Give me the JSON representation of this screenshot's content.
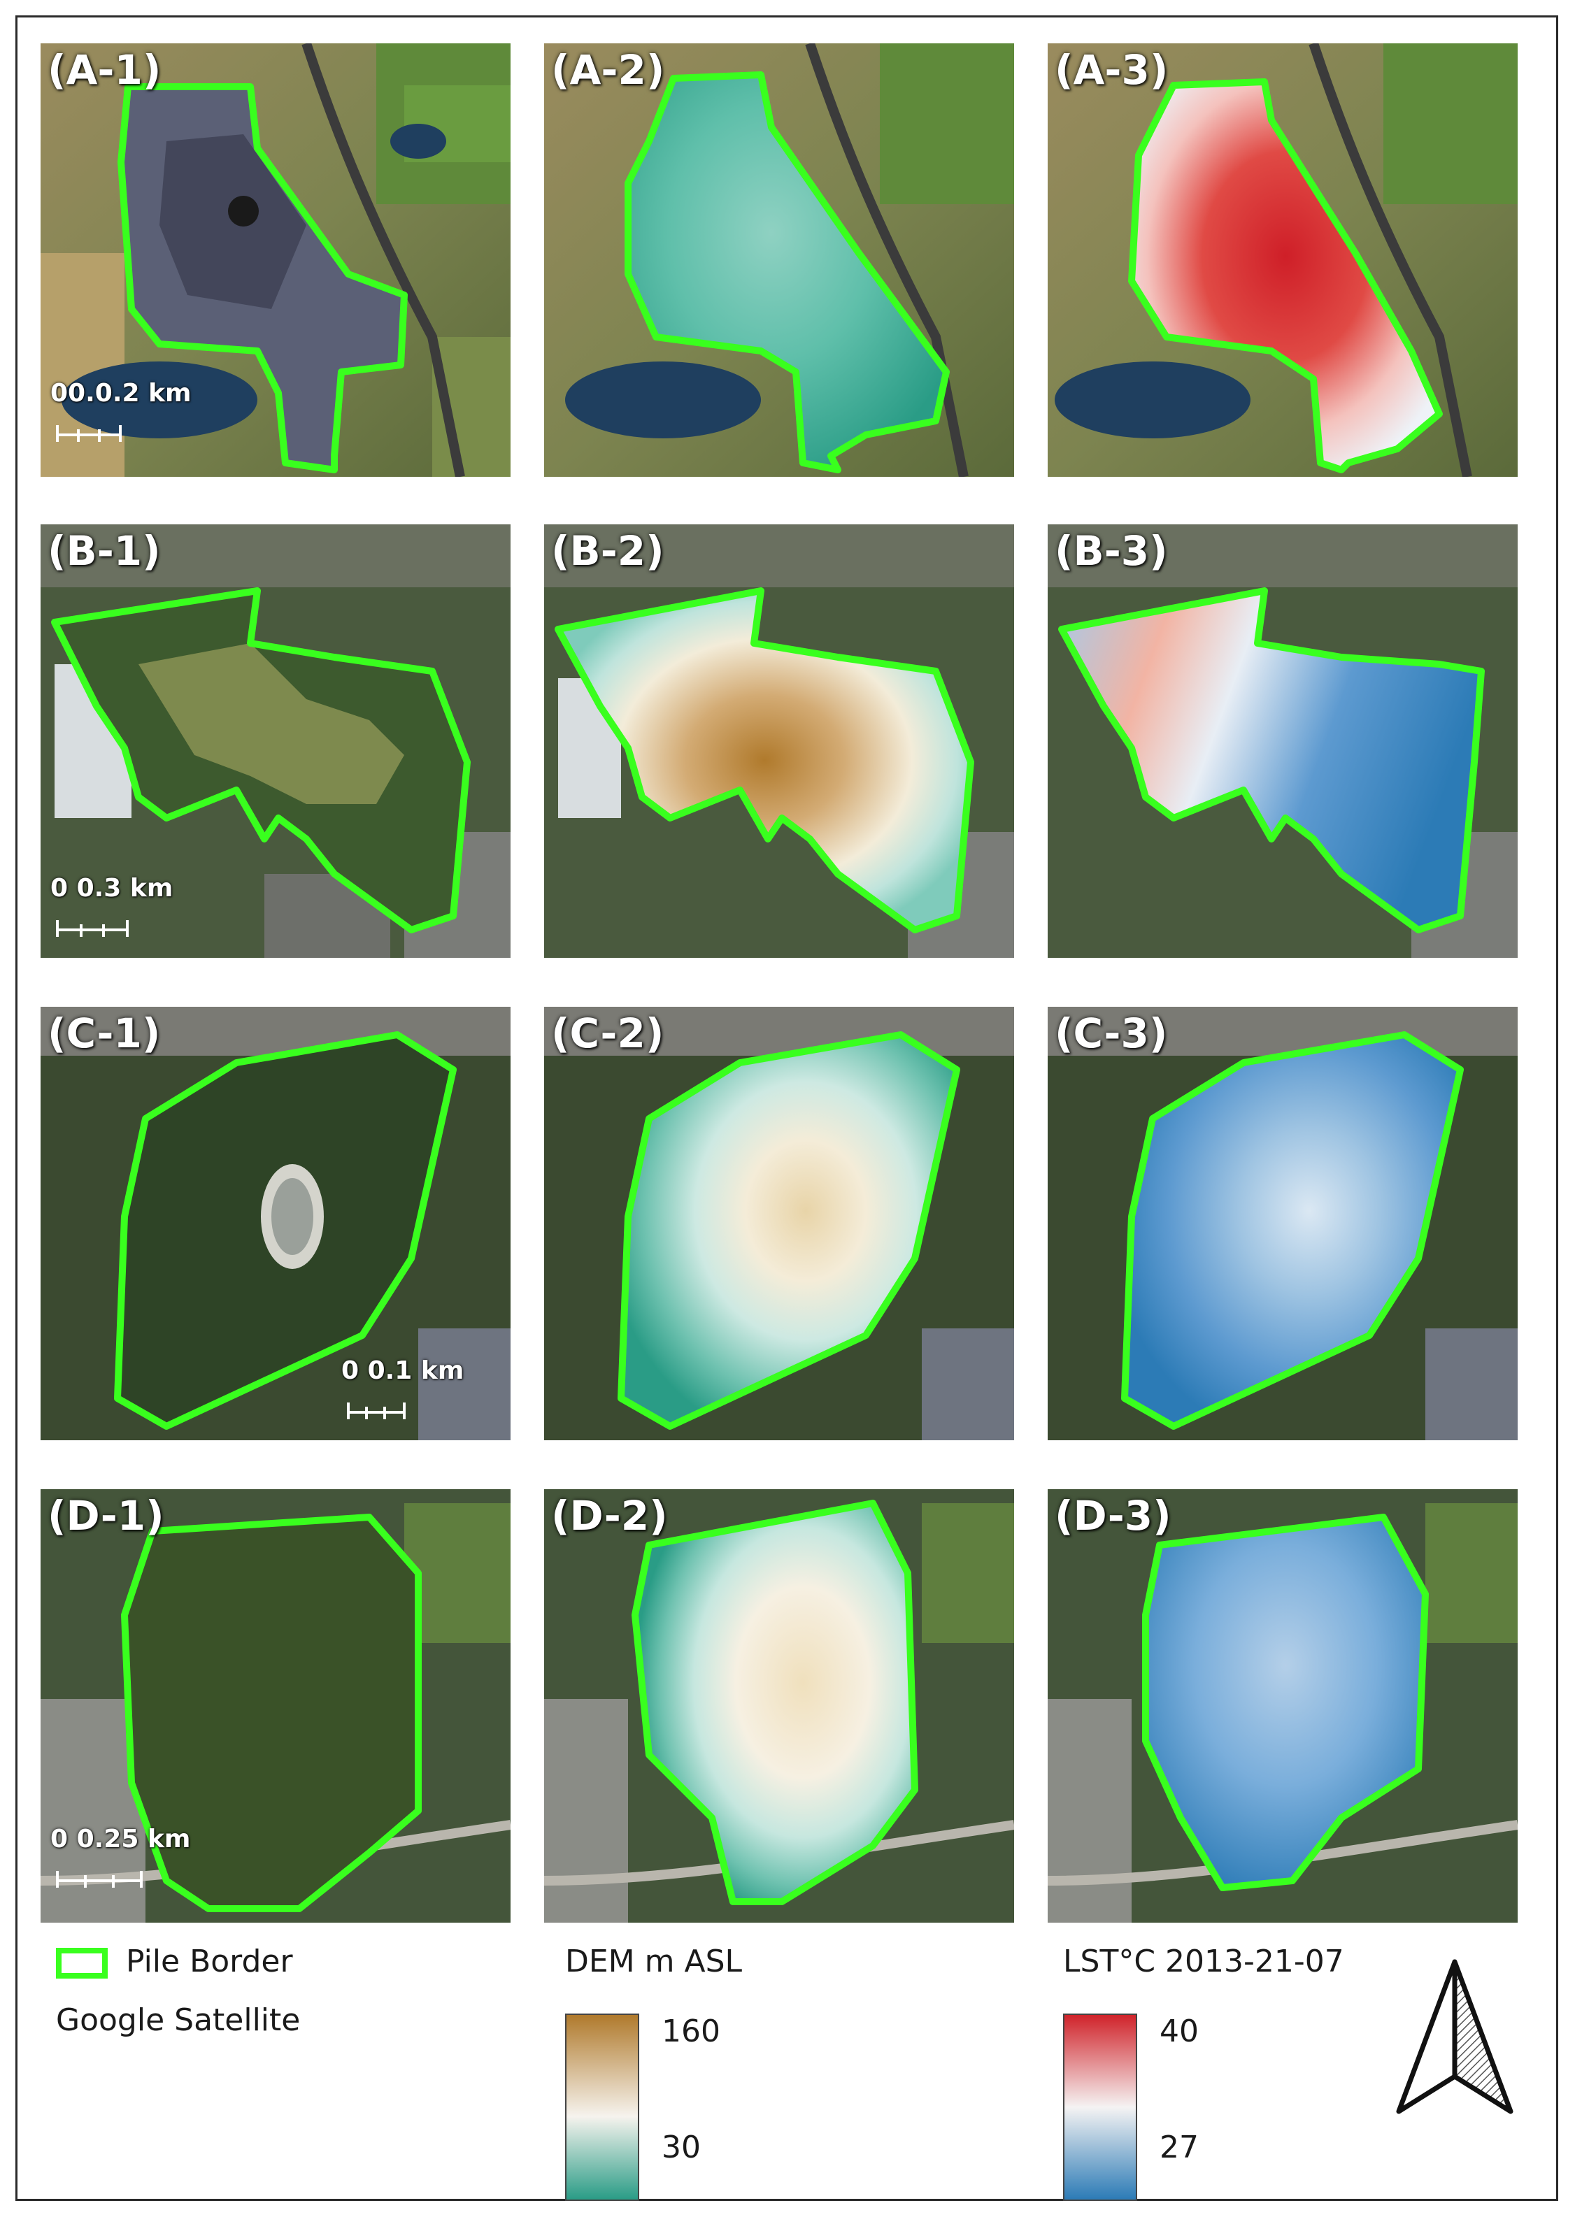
{
  "panels": [
    {
      "id": "A-1",
      "label": "(A-1)",
      "type": "satellite",
      "scale": {
        "text": "00.0.2 km"
      }
    },
    {
      "id": "A-2",
      "label": "(A-2)",
      "type": "dem"
    },
    {
      "id": "A-3",
      "label": "(A-3)",
      "type": "lst"
    },
    {
      "id": "B-1",
      "label": "(B-1)",
      "type": "satellite",
      "scale": {
        "text": "0    0.3 km"
      }
    },
    {
      "id": "B-2",
      "label": "(B-2)",
      "type": "dem"
    },
    {
      "id": "B-3",
      "label": "(B-3)",
      "type": "lst"
    },
    {
      "id": "C-1",
      "label": "(C-1)",
      "type": "satellite",
      "scale": {
        "text": "0  0.1 km"
      }
    },
    {
      "id": "C-2",
      "label": "(C-2)",
      "type": "dem"
    },
    {
      "id": "C-3",
      "label": "(C-3)",
      "type": "lst"
    },
    {
      "id": "D-1",
      "label": "(D-1)",
      "type": "satellite",
      "scale": {
        "text": "0    0.25 km"
      }
    },
    {
      "id": "D-2",
      "label": "(D-2)",
      "type": "dem"
    },
    {
      "id": "D-3",
      "label": "(D-3)",
      "type": "lst"
    }
  ],
  "legend": {
    "pile_border": "Pile Border",
    "basemap": "Google Satellite",
    "dem_title": "DEM m ASL",
    "dem_max": "160",
    "dem_min": "30",
    "lst_title": "LST°C 2013-21-07",
    "lst_max": "40",
    "lst_min": "27"
  },
  "colors": {
    "border": "#39ff1e",
    "dem_high": "#b07a2c",
    "dem_mid": "#f6f3ee",
    "dem_low": "#2a9c86",
    "lst_high": "#d0232a",
    "lst_mid": "#f5f3f3",
    "lst_low": "#2c7bb6"
  },
  "north_arrow": "north-arrow-icon"
}
